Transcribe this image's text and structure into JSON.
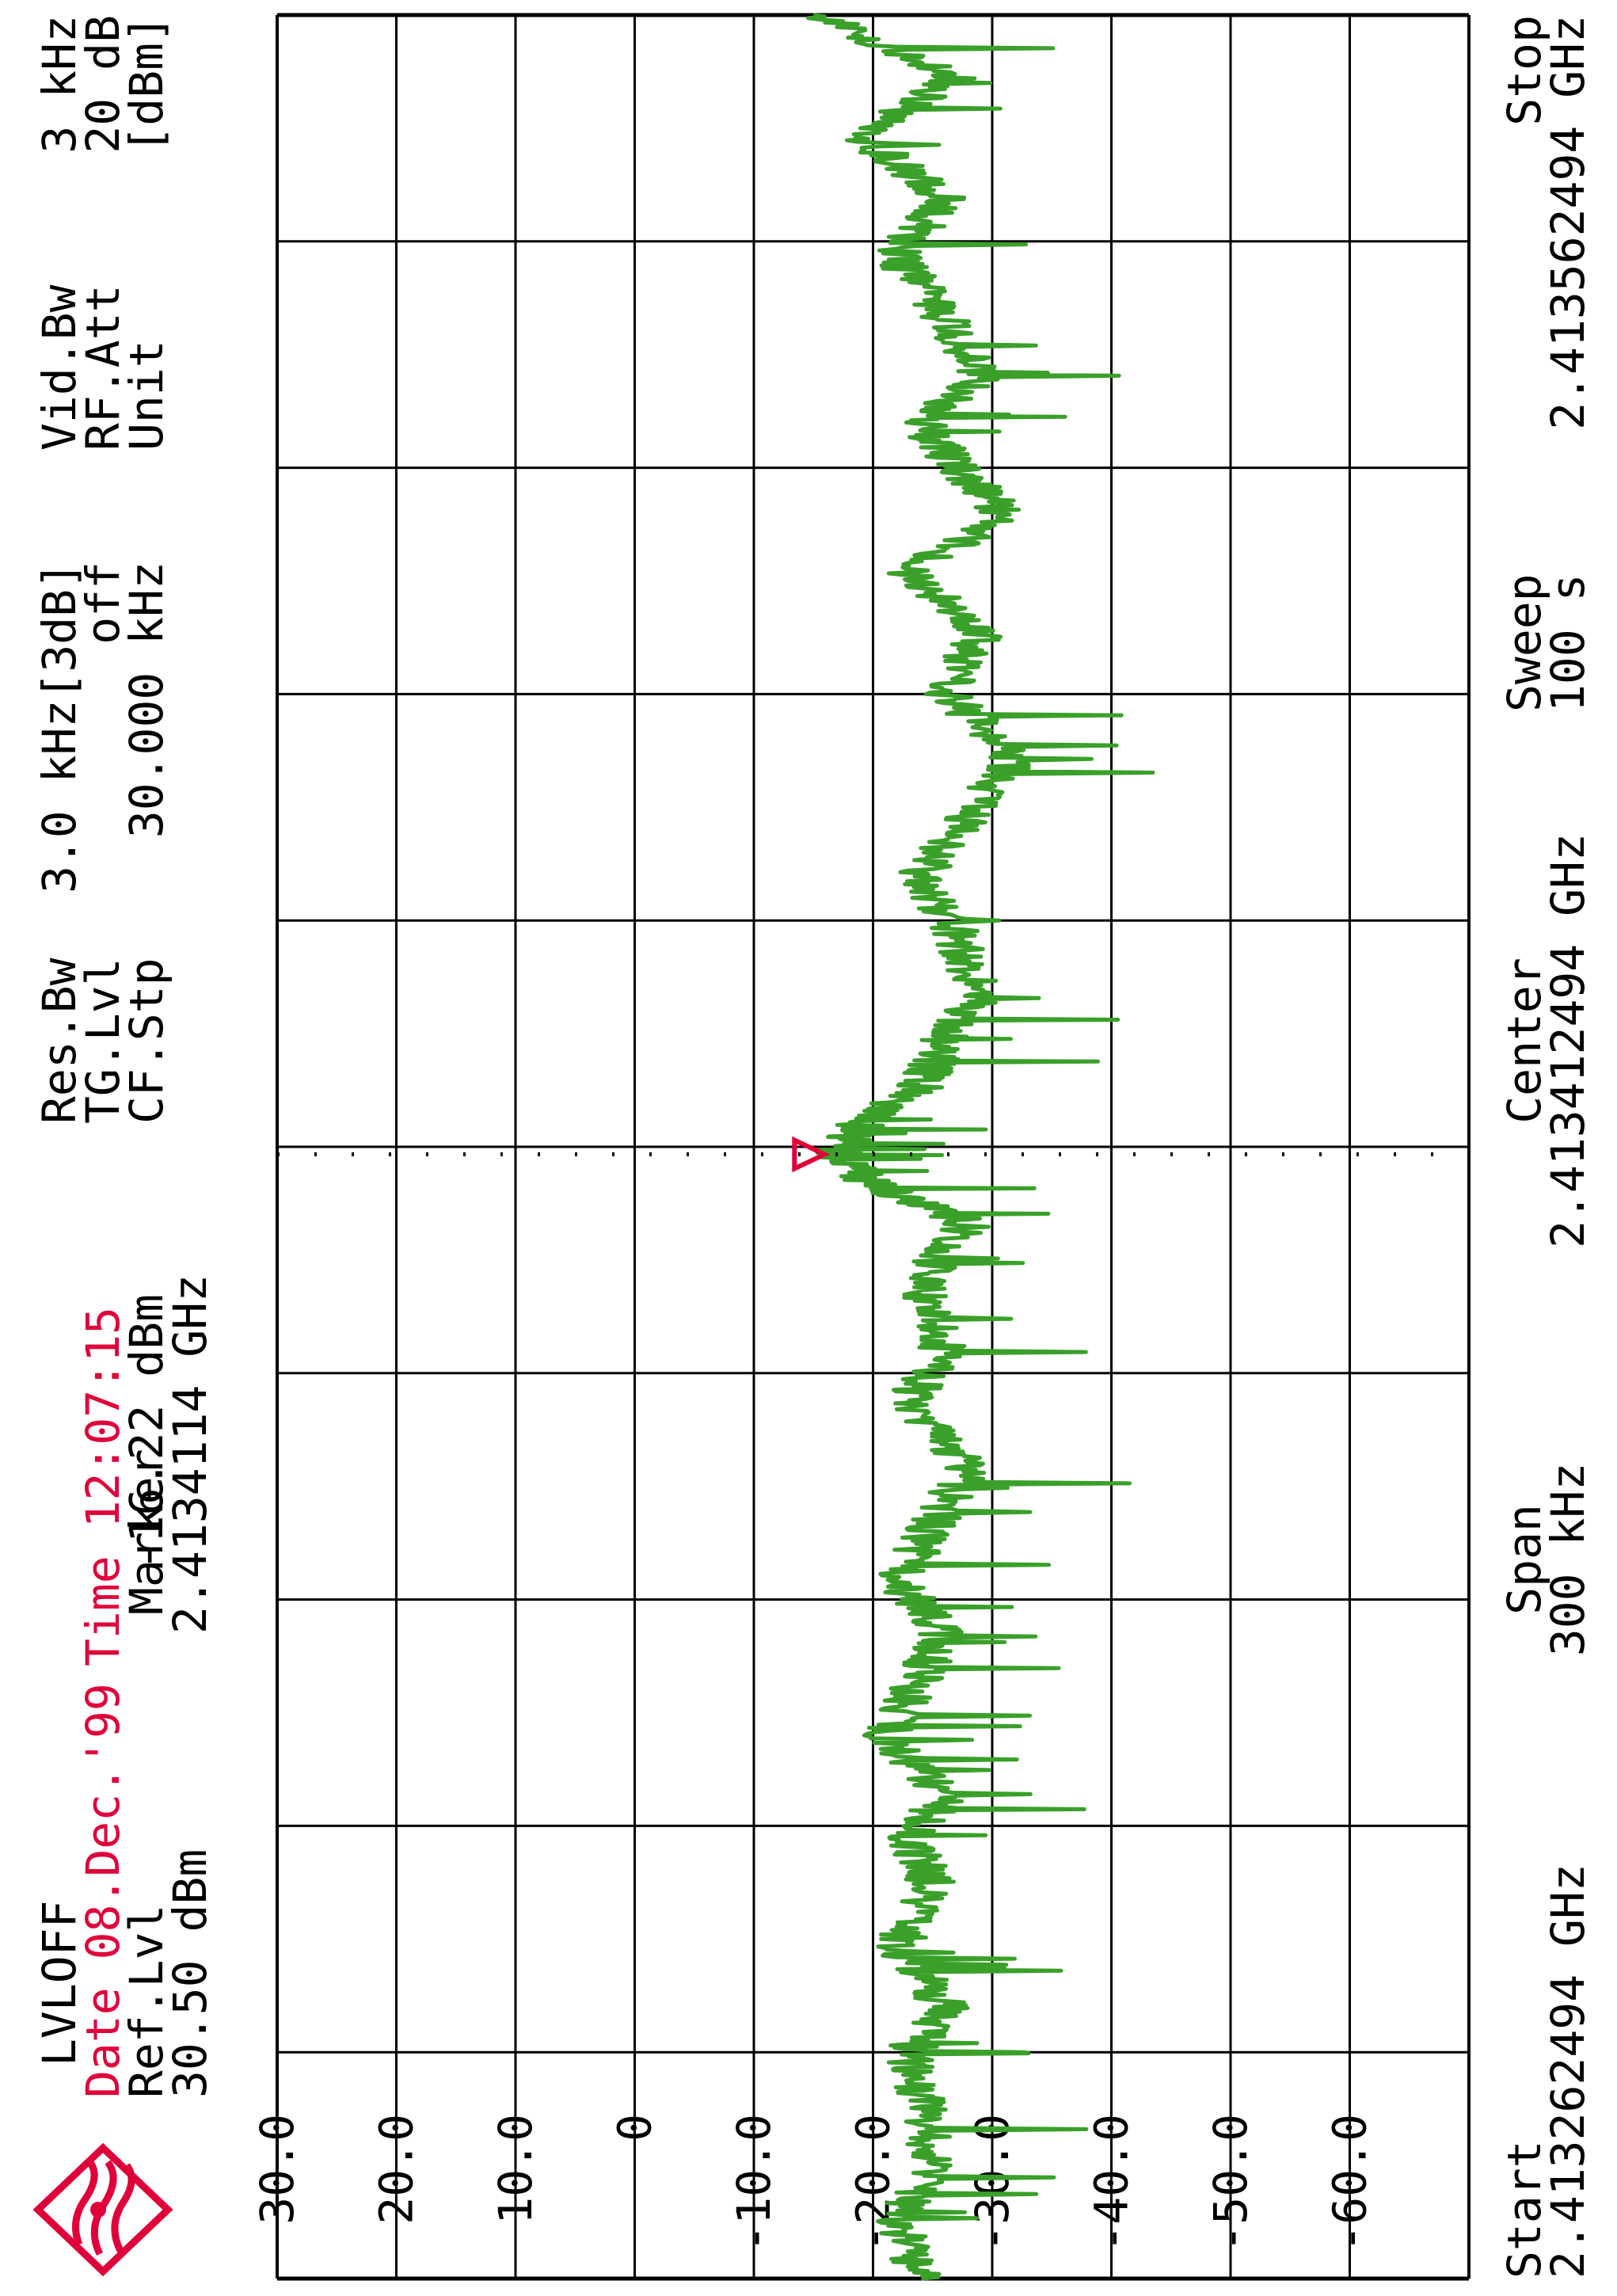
{
  "header": {
    "mode": "LVLOFF",
    "date_label": "Date 08.Dec.'99",
    "time_label": "Time 12:07:15",
    "ref_lvl_label": "Ref.Lvl",
    "ref_lvl_value": "30.50 dBm",
    "marker_label": "Marker",
    "marker_level": "-16.22 dBm",
    "marker_freq": "2.4134114 GHz",
    "res_bw_label": "Res.Bw",
    "res_bw_value": "3.0 kHz[3dB]",
    "tg_lvl_label": "TG.Lvl",
    "tg_lvl_value": "off",
    "cf_stp_label": "CF.Stp",
    "cf_stp_value": "30.000 kHz",
    "vid_bw_label": "Vid.Bw",
    "vid_bw_value": "3 kHz",
    "rf_att_label": "RF.Att",
    "rf_att_value": "20 dB",
    "unit_label": "Unit",
    "unit_value": "[dBm]"
  },
  "footer": {
    "start_label": "Start",
    "start_value": "2.413262494 GHz",
    "span_label": "Span",
    "span_value": "300 kHz",
    "center_label": "Center",
    "center_value": "2.413412494 GHz",
    "sweep_label": "Sweep",
    "sweep_value": "100 s",
    "stop_label": "Stop",
    "stop_value": "2.413562494 GHz"
  },
  "colors": {
    "trace": "#3aa02a",
    "marker": "#e0003a",
    "grid": "#000000",
    "logo": "#e0003a"
  },
  "logo_icon": "rohde-schwarz-logo",
  "chart_data": {
    "type": "line",
    "ylim": [
      -70,
      30
    ],
    "xlim_khz": [
      0,
      300
    ],
    "y_ticks": [
      "30.0",
      "20.0",
      "10.0",
      "0",
      "-10.0",
      "-20.0",
      "-30.0",
      "-40.0",
      "-50.0",
      "-60.0"
    ],
    "y_tick_values": [
      30,
      20,
      10,
      0,
      -10,
      -20,
      -30,
      -40,
      -50,
      -60
    ],
    "x_divisions": 10,
    "grid": true,
    "marker": {
      "x_khz": 149.0,
      "y": -16.2
    },
    "series": [
      {
        "x_khz": [
          0,
          8,
          16,
          24,
          30,
          36,
          44,
          52,
          58,
          64,
          72,
          80,
          86,
          92,
          100,
          108,
          116,
          124,
          132,
          140,
          145,
          149,
          153,
          158,
          164,
          170,
          178,
          186,
          194,
          202,
          210,
          218,
          226,
          234,
          240,
          246,
          252,
          260,
          268,
          276,
          284,
          292,
          300
        ],
        "values": [
          -24,
          -22,
          -25,
          -24,
          -23,
          -26,
          -22,
          -25,
          -23,
          -26,
          -21,
          -24,
          -26,
          -22,
          -25,
          -28,
          -23,
          -26,
          -24,
          -28,
          -20,
          -17,
          -19,
          -24,
          -26,
          -29,
          -27,
          -24,
          -28,
          -32,
          -26,
          -29,
          -23,
          -31,
          -27,
          -24,
          -29,
          -26,
          -22,
          -26,
          -19,
          -27,
          -15
        ]
      }
    ]
  }
}
